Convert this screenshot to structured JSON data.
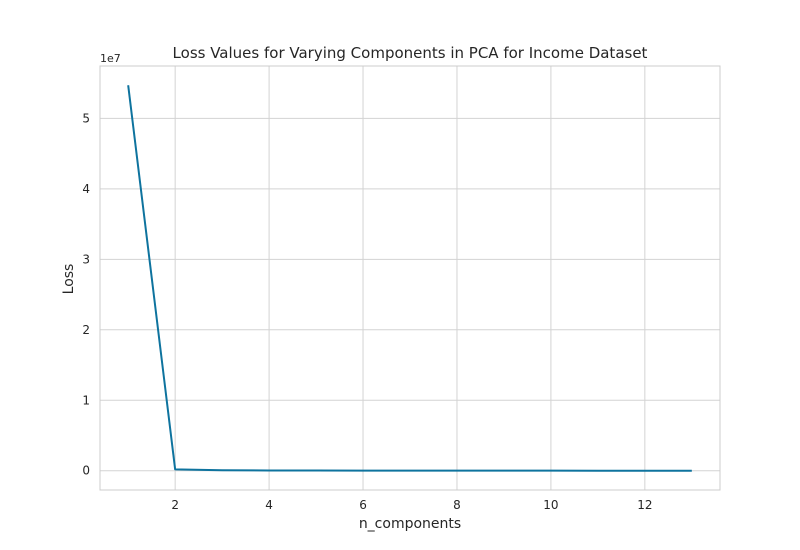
{
  "chart_data": {
    "type": "line",
    "title": "Loss Values for Varying Components in PCA for Income Dataset",
    "xlabel": "n_components",
    "ylabel": "Loss",
    "y_offset_label": "1e7",
    "x": [
      1,
      2,
      3,
      4,
      5,
      6,
      7,
      8,
      9,
      10,
      11,
      12,
      13
    ],
    "series": [
      {
        "values": [
          54700000,
          200000,
          60000,
          40000,
          30000,
          20000,
          15000,
          10000,
          8000,
          6000,
          4000,
          2000,
          1000
        ]
      }
    ],
    "xlim": [
      0.4,
      13.6
    ],
    "ylim": [
      -2735000,
      57435000
    ],
    "xticks": [
      2,
      4,
      6,
      8,
      10,
      12
    ],
    "xtick_labels": [
      "2",
      "4",
      "6",
      "8",
      "10",
      "12"
    ],
    "yticks": [
      0,
      10000000,
      20000000,
      30000000,
      40000000,
      50000000
    ],
    "ytick_labels": [
      "0",
      "1",
      "2",
      "3",
      "4",
      "5"
    ],
    "grid": true,
    "line_color": "#0e739e",
    "grid_color": "#d3d3d3",
    "spine_color": "#cccccc"
  }
}
